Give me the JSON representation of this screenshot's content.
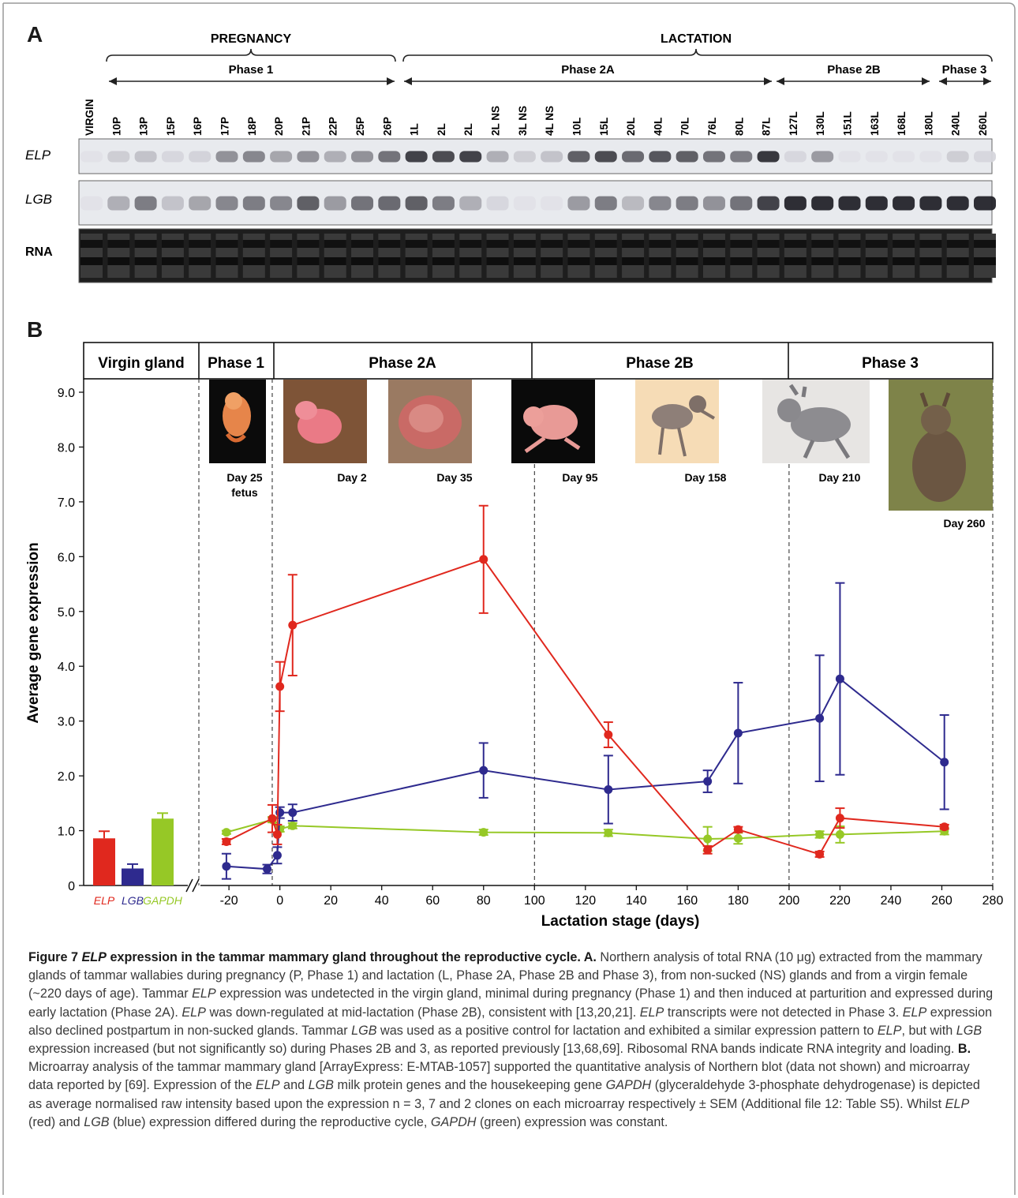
{
  "panel_a": {
    "label": "A",
    "group_labels": [
      "PREGNANCY",
      "LACTATION"
    ],
    "phase_labels": [
      "Phase 1",
      "Phase 2A",
      "Phase 2B",
      "Phase 3"
    ],
    "row_labels": [
      "ELP",
      "LGB",
      "RNA"
    ],
    "lanes": [
      "VIRGIN",
      "10P",
      "13P",
      "15P",
      "16P",
      "17P",
      "18P",
      "20P",
      "21P",
      "22P",
      "25P",
      "26P",
      "1L",
      "2L",
      "2L",
      "2L NS",
      "3L NS",
      "4L NS",
      "10L",
      "15L",
      "20L",
      "40L",
      "70L",
      "76L",
      "80L",
      "87L",
      "127L",
      "130L",
      "151L",
      "163L",
      "168L",
      "180L",
      "240L",
      "260L"
    ],
    "elp_intensity": [
      0.05,
      0.15,
      0.2,
      0.1,
      0.12,
      0.45,
      0.5,
      0.35,
      0.45,
      0.3,
      0.45,
      0.6,
      0.85,
      0.8,
      0.85,
      0.3,
      0.15,
      0.2,
      0.7,
      0.8,
      0.65,
      0.75,
      0.7,
      0.6,
      0.55,
      0.9,
      0.1,
      0.4,
      0.05,
      0.05,
      0.05,
      0.05,
      0.15,
      0.1
    ],
    "lgb_intensity": [
      0.05,
      0.3,
      0.55,
      0.2,
      0.35,
      0.5,
      0.55,
      0.5,
      0.7,
      0.4,
      0.6,
      0.65,
      0.7,
      0.55,
      0.3,
      0.1,
      0.05,
      0.05,
      0.4,
      0.55,
      0.25,
      0.5,
      0.55,
      0.45,
      0.6,
      0.85,
      0.95,
      0.95,
      0.95,
      0.95,
      0.95,
      0.95,
      0.95,
      0.95
    ]
  },
  "panel_b": {
    "label": "B",
    "phase_header": [
      "Virgin gland",
      "Phase 1",
      "Phase 2A",
      "Phase 2B",
      "Phase 3"
    ],
    "photo_captions": [
      "Day 25\nfetus",
      "Day 2",
      "Day 35",
      "Day 95",
      "Day 158",
      "Day 210",
      "Day 260"
    ],
    "colors": {
      "ELP": "#e0281e",
      "LGB": "#2e2a8e",
      "GAPDH": "#96c826"
    }
  },
  "chart_data": {
    "type": "line",
    "ylabel": "Average gene expression",
    "xlabel": "Lactation stage (days)",
    "ylim": [
      0,
      9.0
    ],
    "xlim": [
      -25,
      280
    ],
    "y_ticks": [
      "0",
      "1.0",
      "2.0",
      "3.0",
      "4.0",
      "5.0",
      "6.0",
      "7.0",
      "8.0",
      "9.0"
    ],
    "x_ticks": [
      "-20",
      "0",
      "20",
      "40",
      "60",
      "80",
      "100",
      "120",
      "140",
      "160",
      "180",
      "200",
      "220",
      "240",
      "260",
      "280"
    ],
    "phase_boundaries": [
      -3,
      100,
      200,
      280
    ],
    "virgin_bars": [
      {
        "name": "ELP",
        "value": 0.86,
        "sem": 0.13
      },
      {
        "name": "LGB",
        "value": 0.31,
        "sem": 0.08
      },
      {
        "name": "GAPDH",
        "value": 1.22,
        "sem": 0.1
      }
    ],
    "series": [
      {
        "name": "ELP",
        "x": [
          -21,
          -3,
          -1,
          0,
          5,
          80,
          129,
          168,
          180,
          212,
          220,
          261
        ],
        "y": [
          0.8,
          1.22,
          0.93,
          3.63,
          4.75,
          5.95,
          2.75,
          0.65,
          1.02,
          0.57,
          1.23,
          1.07
        ],
        "sem": [
          0.05,
          0.25,
          0.18,
          0.45,
          0.92,
          0.98,
          0.23,
          0.07,
          0.05,
          0.05,
          0.18,
          0.04
        ]
      },
      {
        "name": "LGB",
        "x": [
          -21,
          -5,
          -1,
          0,
          5,
          80,
          129,
          168,
          180,
          212,
          220,
          261
        ],
        "y": [
          0.35,
          0.3,
          0.55,
          1.33,
          1.33,
          2.1,
          1.75,
          1.9,
          2.78,
          3.05,
          3.77,
          2.25
        ],
        "sem": [
          0.23,
          0.08,
          0.15,
          0.1,
          0.15,
          0.5,
          0.62,
          0.2,
          0.92,
          1.15,
          1.75,
          0.86
        ]
      },
      {
        "name": "GAPDH",
        "x": [
          -21,
          -3,
          0,
          5,
          80,
          129,
          168,
          180,
          212,
          220,
          261
        ],
        "y": [
          0.97,
          1.2,
          1.03,
          1.09,
          0.97,
          0.96,
          0.85,
          0.86,
          0.93,
          0.93,
          0.99
        ],
        "sem": [
          0.03,
          0.05,
          0.05,
          0.05,
          0.05,
          0.06,
          0.22,
          0.1,
          0.06,
          0.15,
          0.06
        ]
      }
    ]
  },
  "caption": {
    "fig_label": "Figure 7",
    "fig_title_em": "ELP",
    "fig_title": " expression in the tammar mammary gland throughout the reproductive cycle.",
    "segments": [
      {
        "t": " A.",
        "s": "bold"
      },
      {
        "t": " Northern analysis of total RNA (10 μg) extracted from the mammary glands of tammar wallabies during pregnancy (P, Phase 1) and lactation (L, Phase 2A, Phase 2B and Phase 3), from non-sucked (NS) glands and from a virgin female (~220 days of age). Tammar ",
        "s": ""
      },
      {
        "t": "ELP",
        "s": "em"
      },
      {
        "t": " expression was undetected in the virgin gland, minimal during pregnancy (Phase 1) and then induced at parturition and expressed during early lactation (Phase 2A). ",
        "s": ""
      },
      {
        "t": "ELP",
        "s": "em"
      },
      {
        "t": " was down-regulated at mid-lactation (Phase 2B), consistent with [13,20,21]. ",
        "s": ""
      },
      {
        "t": "ELP",
        "s": "em"
      },
      {
        "t": " transcripts were not detected in Phase 3. ",
        "s": ""
      },
      {
        "t": "ELP",
        "s": "em"
      },
      {
        "t": " expression also declined postpartum in non-sucked glands. Tammar ",
        "s": ""
      },
      {
        "t": "LGB",
        "s": "em"
      },
      {
        "t": " was used as a positive control for lactation and exhibited a similar expression pattern to ",
        "s": ""
      },
      {
        "t": "ELP",
        "s": "em"
      },
      {
        "t": ", but with ",
        "s": ""
      },
      {
        "t": "LGB",
        "s": "em"
      },
      {
        "t": " expression increased (but not significantly so) during Phases 2B and 3, as reported previously [13,68,69]. Ribosomal RNA bands indicate RNA integrity and loading.",
        "s": ""
      },
      {
        "t": " B.",
        "s": "bold"
      },
      {
        "t": " Microarray analysis of the tammar mammary gland [ArrayExpress: E-MTAB-1057] supported the quantitative analysis of Northern blot (data not shown) and microarray data reported by [69]. Expression of the ",
        "s": ""
      },
      {
        "t": "ELP",
        "s": "em"
      },
      {
        "t": " and ",
        "s": ""
      },
      {
        "t": "LGB",
        "s": "em"
      },
      {
        "t": " milk protein genes and the housekeeping gene ",
        "s": ""
      },
      {
        "t": "GAPDH",
        "s": "em"
      },
      {
        "t": " (glyceraldehyde 3-phosphate dehydrogenase) is depicted as average normalised raw intensity based upon the expression n = 3, 7 and 2 clones on each microarray respectively ± SEM (Additional file 12: Table S5). Whilst ",
        "s": ""
      },
      {
        "t": "ELP",
        "s": "em"
      },
      {
        "t": " (red) and ",
        "s": ""
      },
      {
        "t": "LGB",
        "s": "em"
      },
      {
        "t": " (blue) expression differed during the reproductive cycle, ",
        "s": ""
      },
      {
        "t": "GAPDH",
        "s": "em"
      },
      {
        "t": " (green) expression was constant.",
        "s": ""
      }
    ]
  }
}
